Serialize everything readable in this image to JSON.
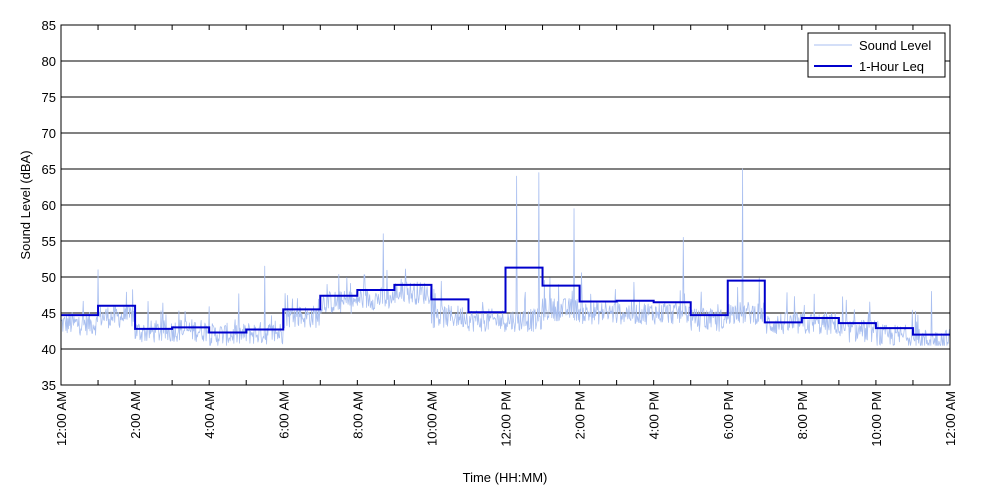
{
  "chart_data": {
    "type": "line",
    "title": "",
    "xlabel": "Time (HH:MM)",
    "ylabel": "Sound Level (dBA)",
    "ylim": [
      35,
      85
    ],
    "yticks": [
      35,
      40,
      45,
      50,
      55,
      60,
      65,
      70,
      75,
      80,
      85
    ],
    "xlim_hours": [
      0,
      24
    ],
    "xtick_labels": [
      "12:00 AM",
      "2:00 AM",
      "4:00 AM",
      "6:00 AM",
      "8:00 AM",
      "10:00 AM",
      "12:00 PM",
      "2:00 PM",
      "4:00 PM",
      "6:00 PM",
      "8:00 PM",
      "10:00 PM",
      "12:00 AM"
    ],
    "grid": "horizontal",
    "legend_position": "top-right",
    "series": [
      {
        "name": "Sound Level",
        "color": "#a9bff0",
        "style": "thin line",
        "hourly_baseline": [
          43.5,
          44.5,
          42.4,
          42.6,
          42.0,
          42.2,
          44.5,
          46.5,
          47.0,
          47.8,
          44.5,
          44.0,
          44.0,
          45.5,
          45.0,
          45.0,
          45.0,
          44.0,
          45.0,
          43.5,
          43.5,
          42.5,
          41.8,
          41.2
        ],
        "notable_peaks": [
          {
            "hour": 1.0,
            "value": 51.0
          },
          {
            "hour": 5.5,
            "value": 51.5
          },
          {
            "hour": 8.7,
            "value": 56.0
          },
          {
            "hour": 12.3,
            "value": 64.0
          },
          {
            "hour": 12.9,
            "value": 64.5
          },
          {
            "hour": 13.85,
            "value": 59.5
          },
          {
            "hour": 16.8,
            "value": 55.5
          },
          {
            "hour": 18.4,
            "value": 65.0
          },
          {
            "hour": 23.5,
            "value": 48.0
          }
        ]
      },
      {
        "name": "1-Hour Leq",
        "color": "#0000cc",
        "style": "step",
        "hourly_values": [
          44.7,
          46.0,
          42.8,
          43.0,
          42.3,
          42.7,
          45.5,
          47.4,
          48.2,
          48.9,
          46.9,
          45.1,
          51.3,
          48.8,
          46.6,
          46.7,
          46.5,
          44.7,
          49.5,
          43.7,
          44.3,
          43.6,
          42.9,
          42.0
        ]
      }
    ]
  }
}
